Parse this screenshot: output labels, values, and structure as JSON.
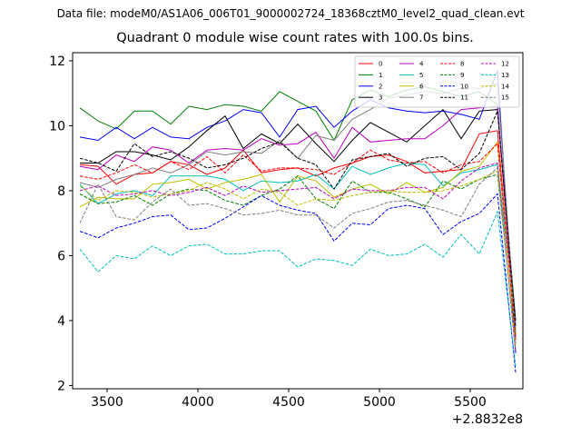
{
  "header": {
    "suptitle": "Data file: modeM0/AS1A06_006T01_9000002724_18368cztM0_level2_quad_clean.evt"
  },
  "chart_data": {
    "type": "line",
    "title": "Quadrant 0 module wise count rates with 100.0s bins.",
    "xlabel": "",
    "ylabel": "",
    "x_offset_label": "+2.8832e8",
    "xlim": [
      3310,
      5790
    ],
    "ylim": [
      1.9,
      12.25
    ],
    "x_ticks": [
      3500,
      4000,
      4500,
      5000,
      5500
    ],
    "y_ticks": [
      2,
      4,
      6,
      8,
      10,
      12
    ],
    "grid": false,
    "legend_position": "top-right",
    "legend_columns": 4,
    "x": [
      3350,
      3450,
      3550,
      3650,
      3750,
      3850,
      3950,
      4050,
      4150,
      4250,
      4350,
      4450,
      4550,
      4650,
      4750,
      4850,
      4950,
      5050,
      5150,
      5250,
      5350,
      5450,
      5550,
      5650,
      5750
    ],
    "series": [
      {
        "name": "0",
        "color": "#ff0000",
        "dash": "solid",
        "values": [
          8.8,
          8.75,
          8.2,
          8.5,
          8.55,
          8.9,
          8.8,
          8.5,
          8.7,
          9.25,
          8.55,
          8.65,
          8.7,
          8.45,
          8.7,
          8.85,
          9.05,
          9.1,
          8.9,
          8.55,
          8.6,
          8.65,
          9.75,
          9.85,
          3.4
        ]
      },
      {
        "name": "1",
        "color": "#008000",
        "dash": "solid",
        "values": [
          10.55,
          10.15,
          9.9,
          10.45,
          10.45,
          10.05,
          10.6,
          10.5,
          10.65,
          10.6,
          10.45,
          11.05,
          10.75,
          10.45,
          9.55,
          10.8,
          11.1,
          10.9,
          11.1,
          11.2,
          11.05,
          10.9,
          11.05,
          10.65,
          3.6
        ]
      },
      {
        "name": "2",
        "color": "#0000ff",
        "dash": "solid",
        "values": [
          9.65,
          9.55,
          9.95,
          9.6,
          9.95,
          9.65,
          9.6,
          9.95,
          10.15,
          10.5,
          10.4,
          9.65,
          10.5,
          10.6,
          9.95,
          10.45,
          10.8,
          10.55,
          10.45,
          10.4,
          10.45,
          10.35,
          10.2,
          11.7,
          3.0
        ]
      },
      {
        "name": "3",
        "color": "#000000",
        "dash": "solid",
        "values": [
          8.85,
          8.85,
          9.2,
          9.2,
          9.1,
          8.95,
          9.35,
          9.85,
          10.3,
          9.3,
          9.75,
          9.45,
          10.05,
          9.45,
          8.9,
          9.55,
          10.1,
          9.8,
          9.5,
          10.0,
          10.5,
          9.6,
          10.45,
          10.5,
          4.0
        ]
      },
      {
        "name": "4",
        "color": "#bf00bf",
        "dash": "solid",
        "values": [
          8.75,
          8.65,
          9.1,
          8.9,
          9.35,
          9.25,
          8.85,
          9.25,
          9.3,
          9.25,
          9.6,
          9.4,
          9.45,
          9.8,
          9.0,
          9.95,
          9.5,
          9.55,
          9.6,
          9.6,
          10.0,
          10.5,
          10.55,
          10.6,
          3.5
        ]
      },
      {
        "name": "5",
        "color": "#00bfbf",
        "dash": "solid",
        "values": [
          8.2,
          7.6,
          7.9,
          8.0,
          7.85,
          8.45,
          8.45,
          8.45,
          8.35,
          8.0,
          8.3,
          8.25,
          8.3,
          8.5,
          8.05,
          8.75,
          8.5,
          8.7,
          8.85,
          8.8,
          8.15,
          8.55,
          8.65,
          8.8,
          3.9
        ]
      },
      {
        "name": "6",
        "color": "#bfbf00",
        "dash": "solid",
        "values": [
          7.5,
          7.8,
          7.75,
          7.75,
          8.2,
          8.25,
          8.35,
          8.05,
          8.25,
          8.35,
          8.5,
          7.65,
          8.45,
          8.3,
          7.8,
          8.05,
          8.2,
          7.9,
          8.25,
          7.95,
          8.1,
          8.6,
          8.75,
          9.5,
          3.6
        ]
      },
      {
        "name": "7",
        "color": "#7f7f7f",
        "dash": "solid",
        "values": [
          8.25,
          8.1,
          8.35,
          8.5,
          8.7,
          8.55,
          8.8,
          9.2,
          9.1,
          9.2,
          9.15,
          9.55,
          9.0,
          9.7,
          9.55,
          10.2,
          10.5,
          10.85,
          10.95,
          11.05,
          11.0,
          11.15,
          11.15,
          11.3,
          3.7
        ]
      },
      {
        "name": "8",
        "color": "#ff0000",
        "dash": "dashed",
        "values": [
          8.45,
          8.35,
          8.55,
          8.8,
          8.55,
          8.9,
          8.65,
          9.05,
          8.55,
          9.1,
          8.6,
          8.7,
          8.7,
          8.65,
          8.5,
          8.85,
          9.25,
          8.95,
          8.85,
          8.9,
          8.55,
          8.8,
          8.9,
          9.45,
          3.5
        ]
      },
      {
        "name": "9",
        "color": "#008000",
        "dash": "dashed",
        "values": [
          7.9,
          7.6,
          7.65,
          7.85,
          7.55,
          7.9,
          8.05,
          8.0,
          7.7,
          7.55,
          7.85,
          8.05,
          8.45,
          7.75,
          7.45,
          8.3,
          7.95,
          7.95,
          7.75,
          7.5,
          8.3,
          8.05,
          8.35,
          8.5,
          3.3
        ]
      },
      {
        "name": "10",
        "color": "#0000ff",
        "dash": "dashed",
        "values": [
          6.75,
          6.55,
          6.85,
          7.0,
          7.2,
          7.25,
          6.8,
          6.85,
          7.15,
          7.5,
          7.85,
          7.55,
          7.4,
          7.3,
          6.45,
          7.0,
          6.95,
          7.45,
          7.55,
          7.45,
          6.65,
          7.05,
          7.3,
          7.9,
          2.4
        ]
      },
      {
        "name": "11",
        "color": "#000000",
        "dash": "dashed",
        "values": [
          9.0,
          8.85,
          8.6,
          9.45,
          9.05,
          9.2,
          9.0,
          8.7,
          8.8,
          9.0,
          9.3,
          9.5,
          9.0,
          8.8,
          8.05,
          8.95,
          9.05,
          9.15,
          8.75,
          9.0,
          9.05,
          8.65,
          9.15,
          10.45,
          3.8
        ]
      },
      {
        "name": "12",
        "color": "#bf00bf",
        "dash": "dashed",
        "values": [
          8.0,
          8.15,
          7.85,
          7.9,
          8.0,
          7.85,
          7.95,
          8.1,
          7.85,
          8.15,
          7.95,
          8.0,
          8.05,
          8.1,
          7.75,
          8.05,
          8.0,
          8.0,
          8.1,
          8.1,
          7.75,
          8.3,
          8.7,
          8.85,
          3.0
        ]
      },
      {
        "name": "13",
        "color": "#00bfbf",
        "dash": "dashed",
        "values": [
          6.2,
          5.5,
          6.0,
          5.9,
          6.3,
          6.0,
          6.3,
          6.35,
          6.05,
          6.05,
          6.15,
          6.15,
          5.65,
          5.9,
          5.85,
          5.7,
          6.2,
          6.0,
          6.05,
          6.35,
          5.95,
          6.65,
          6.05,
          7.35,
          2.6
        ]
      },
      {
        "name": "14",
        "color": "#bfbf00",
        "dash": "dashed",
        "values": [
          8.15,
          7.7,
          8.0,
          7.95,
          7.8,
          7.9,
          8.0,
          8.25,
          8.05,
          7.75,
          8.05,
          7.95,
          7.55,
          7.75,
          7.7,
          7.85,
          7.95,
          8.0,
          7.95,
          7.95,
          8.0,
          8.15,
          8.35,
          8.6,
          3.2
        ]
      },
      {
        "name": "15",
        "color": "#7f7f7f",
        "dash": "dashed",
        "values": [
          7.0,
          8.2,
          7.2,
          7.1,
          7.65,
          8.05,
          7.55,
          7.6,
          7.45,
          7.25,
          7.3,
          7.4,
          7.25,
          7.25,
          6.85,
          7.3,
          7.45,
          7.65,
          7.7,
          7.55,
          7.4,
          7.2,
          8.2,
          8.7,
          3.1
        ]
      }
    ]
  }
}
